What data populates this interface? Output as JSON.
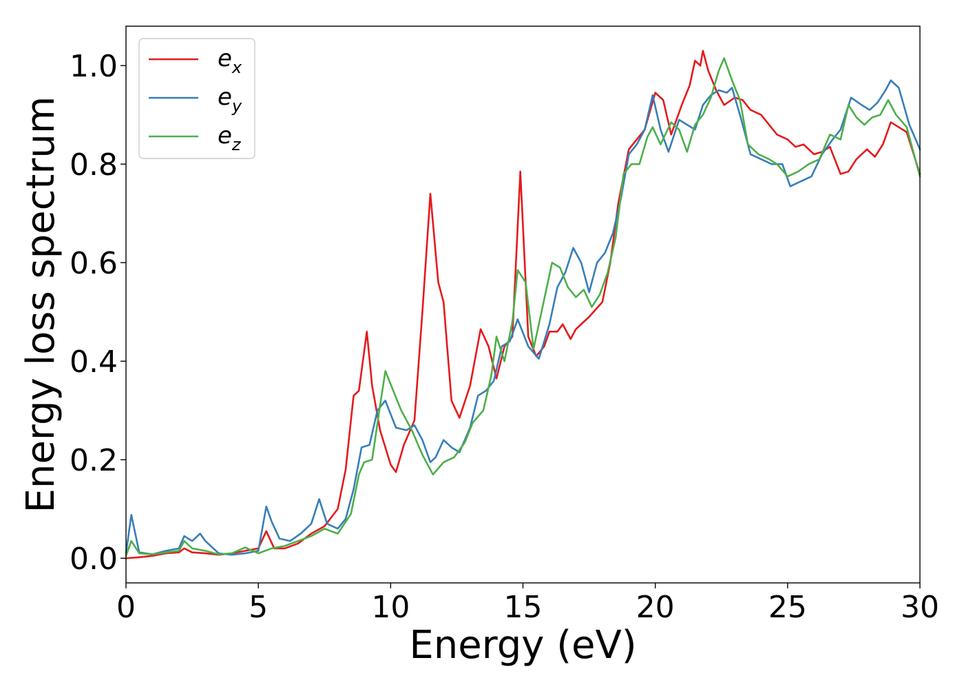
{
  "chart_data": {
    "type": "line",
    "title": "",
    "xlabel": "Energy (eV)",
    "ylabel": "Energy loss spectrum",
    "xlim": [
      0,
      30
    ],
    "ylim": [
      -0.05,
      1.08
    ],
    "x_ticks": [
      0,
      5,
      10,
      15,
      20,
      25,
      30
    ],
    "y_ticks": [
      0.0,
      0.2,
      0.4,
      0.6,
      0.8,
      1.0
    ],
    "x_tick_labels": [
      "0",
      "5",
      "10",
      "15",
      "20",
      "25",
      "30"
    ],
    "y_tick_labels": [
      "0.0",
      "0.2",
      "0.4",
      "0.6",
      "0.8",
      "1.0"
    ],
    "grid": false,
    "legend_position": "upper-left",
    "series": [
      {
        "name": "e_x",
        "legend_base": "e",
        "legend_sub": "x",
        "color": "#e41a1c",
        "points": [
          [
            0,
            0
          ],
          [
            0.5,
            0.002
          ],
          [
            1,
            0.005
          ],
          [
            1.5,
            0.01
          ],
          [
            2,
            0.012
          ],
          [
            2.2,
            0.02
          ],
          [
            2.5,
            0.012
          ],
          [
            3,
            0.01
          ],
          [
            3.5,
            0.007
          ],
          [
            4,
            0.01
          ],
          [
            4.5,
            0.015
          ],
          [
            5,
            0.02
          ],
          [
            5.3,
            0.055
          ],
          [
            5.6,
            0.02
          ],
          [
            6,
            0.02
          ],
          [
            6.5,
            0.03
          ],
          [
            7,
            0.05
          ],
          [
            7.5,
            0.065
          ],
          [
            8,
            0.1
          ],
          [
            8.3,
            0.18
          ],
          [
            8.6,
            0.33
          ],
          [
            8.8,
            0.34
          ],
          [
            9,
            0.42
          ],
          [
            9.1,
            0.46
          ],
          [
            9.3,
            0.35
          ],
          [
            9.6,
            0.26
          ],
          [
            10,
            0.19
          ],
          [
            10.2,
            0.175
          ],
          [
            10.5,
            0.23
          ],
          [
            10.9,
            0.28
          ],
          [
            11.2,
            0.5
          ],
          [
            11.5,
            0.74
          ],
          [
            11.8,
            0.56
          ],
          [
            12,
            0.52
          ],
          [
            12.3,
            0.32
          ],
          [
            12.6,
            0.285
          ],
          [
            13,
            0.35
          ],
          [
            13.4,
            0.465
          ],
          [
            13.7,
            0.43
          ],
          [
            14,
            0.365
          ],
          [
            14.3,
            0.43
          ],
          [
            14.6,
            0.45
          ],
          [
            14.9,
            0.785
          ],
          [
            15.2,
            0.45
          ],
          [
            15.5,
            0.41
          ],
          [
            15.8,
            0.43
          ],
          [
            16,
            0.46
          ],
          [
            16.3,
            0.46
          ],
          [
            16.5,
            0.475
          ],
          [
            16.8,
            0.445
          ],
          [
            17,
            0.465
          ],
          [
            17.5,
            0.49
          ],
          [
            18,
            0.52
          ],
          [
            18.3,
            0.6
          ],
          [
            18.6,
            0.72
          ],
          [
            19,
            0.83
          ],
          [
            19.3,
            0.85
          ],
          [
            19.6,
            0.87
          ],
          [
            20,
            0.945
          ],
          [
            20.3,
            0.93
          ],
          [
            20.6,
            0.86
          ],
          [
            21,
            0.92
          ],
          [
            21.3,
            0.96
          ],
          [
            21.5,
            1.01
          ],
          [
            21.7,
            1.0
          ],
          [
            21.8,
            1.03
          ],
          [
            22,
            0.99
          ],
          [
            22.3,
            0.95
          ],
          [
            22.6,
            0.92
          ],
          [
            23,
            0.935
          ],
          [
            23.3,
            0.93
          ],
          [
            23.6,
            0.91
          ],
          [
            24,
            0.9
          ],
          [
            24.3,
            0.88
          ],
          [
            24.6,
            0.86
          ],
          [
            25,
            0.85
          ],
          [
            25.3,
            0.835
          ],
          [
            25.6,
            0.84
          ],
          [
            26,
            0.82
          ],
          [
            26.3,
            0.825
          ],
          [
            26.6,
            0.835
          ],
          [
            27,
            0.78
          ],
          [
            27.3,
            0.785
          ],
          [
            27.6,
            0.81
          ],
          [
            28,
            0.83
          ],
          [
            28.3,
            0.815
          ],
          [
            28.6,
            0.84
          ],
          [
            28.9,
            0.885
          ],
          [
            29.2,
            0.875
          ],
          [
            29.5,
            0.865
          ],
          [
            30,
            0.78
          ]
        ]
      },
      {
        "name": "e_y",
        "legend_base": "e",
        "legend_sub": "y",
        "color": "#377eb8",
        "points": [
          [
            0,
            0.01
          ],
          [
            0.2,
            0.088
          ],
          [
            0.5,
            0.012
          ],
          [
            1,
            0.008
          ],
          [
            1.5,
            0.015
          ],
          [
            2,
            0.02
          ],
          [
            2.2,
            0.045
          ],
          [
            2.5,
            0.035
          ],
          [
            2.8,
            0.05
          ],
          [
            3,
            0.035
          ],
          [
            3.5,
            0.01
          ],
          [
            4,
            0.007
          ],
          [
            4.5,
            0.01
          ],
          [
            5,
            0.015
          ],
          [
            5.3,
            0.105
          ],
          [
            5.5,
            0.075
          ],
          [
            5.8,
            0.04
          ],
          [
            6.2,
            0.035
          ],
          [
            6.6,
            0.05
          ],
          [
            7,
            0.07
          ],
          [
            7.3,
            0.12
          ],
          [
            7.6,
            0.07
          ],
          [
            8,
            0.06
          ],
          [
            8.3,
            0.08
          ],
          [
            8.6,
            0.14
          ],
          [
            8.9,
            0.225
          ],
          [
            9.2,
            0.23
          ],
          [
            9.5,
            0.3
          ],
          [
            9.8,
            0.32
          ],
          [
            10.2,
            0.265
          ],
          [
            10.6,
            0.26
          ],
          [
            10.9,
            0.27
          ],
          [
            11.2,
            0.24
          ],
          [
            11.5,
            0.195
          ],
          [
            11.7,
            0.205
          ],
          [
            12,
            0.24
          ],
          [
            12.3,
            0.225
          ],
          [
            12.6,
            0.215
          ],
          [
            13,
            0.265
          ],
          [
            13.3,
            0.33
          ],
          [
            13.6,
            0.34
          ],
          [
            13.9,
            0.36
          ],
          [
            14.2,
            0.43
          ],
          [
            14.5,
            0.44
          ],
          [
            14.8,
            0.485
          ],
          [
            15.2,
            0.43
          ],
          [
            15.6,
            0.405
          ],
          [
            16,
            0.475
          ],
          [
            16.3,
            0.55
          ],
          [
            16.6,
            0.58
          ],
          [
            16.9,
            0.63
          ],
          [
            17.2,
            0.6
          ],
          [
            17.5,
            0.54
          ],
          [
            17.8,
            0.6
          ],
          [
            18.1,
            0.62
          ],
          [
            18.4,
            0.66
          ],
          [
            18.7,
            0.73
          ],
          [
            19,
            0.82
          ],
          [
            19.3,
            0.84
          ],
          [
            19.6,
            0.87
          ],
          [
            19.9,
            0.94
          ],
          [
            20.2,
            0.87
          ],
          [
            20.5,
            0.825
          ],
          [
            20.9,
            0.89
          ],
          [
            21.2,
            0.88
          ],
          [
            21.5,
            0.87
          ],
          [
            21.8,
            0.92
          ],
          [
            22.1,
            0.94
          ],
          [
            22.4,
            0.95
          ],
          [
            22.7,
            0.945
          ],
          [
            22.9,
            0.955
          ],
          [
            23.2,
            0.9
          ],
          [
            23.6,
            0.82
          ],
          [
            24,
            0.81
          ],
          [
            24.4,
            0.8
          ],
          [
            24.8,
            0.8
          ],
          [
            25.1,
            0.755
          ],
          [
            25.5,
            0.765
          ],
          [
            25.9,
            0.775
          ],
          [
            26.3,
            0.82
          ],
          [
            26.7,
            0.85
          ],
          [
            27,
            0.87
          ],
          [
            27.4,
            0.935
          ],
          [
            27.8,
            0.92
          ],
          [
            28.1,
            0.91
          ],
          [
            28.4,
            0.925
          ],
          [
            28.7,
            0.95
          ],
          [
            28.9,
            0.97
          ],
          [
            29.2,
            0.955
          ],
          [
            29.6,
            0.88
          ],
          [
            30,
            0.83
          ]
        ]
      },
      {
        "name": "e_z",
        "legend_base": "e",
        "legend_sub": "z",
        "color": "#4daf4a",
        "points": [
          [
            0,
            0.005
          ],
          [
            0.2,
            0.035
          ],
          [
            0.5,
            0.01
          ],
          [
            1,
            0.008
          ],
          [
            1.5,
            0.012
          ],
          [
            2,
            0.015
          ],
          [
            2.2,
            0.035
          ],
          [
            2.5,
            0.02
          ],
          [
            3,
            0.015
          ],
          [
            3.5,
            0.008
          ],
          [
            4,
            0.01
          ],
          [
            4.5,
            0.022
          ],
          [
            5,
            0.01
          ],
          [
            5.5,
            0.02
          ],
          [
            6,
            0.025
          ],
          [
            6.5,
            0.035
          ],
          [
            7,
            0.045
          ],
          [
            7.5,
            0.06
          ],
          [
            8,
            0.05
          ],
          [
            8.5,
            0.09
          ],
          [
            8.8,
            0.17
          ],
          [
            9,
            0.195
          ],
          [
            9.3,
            0.2
          ],
          [
            9.6,
            0.31
          ],
          [
            9.8,
            0.38
          ],
          [
            10.1,
            0.34
          ],
          [
            10.4,
            0.3
          ],
          [
            10.8,
            0.26
          ],
          [
            11.2,
            0.21
          ],
          [
            11.6,
            0.17
          ],
          [
            12,
            0.195
          ],
          [
            12.4,
            0.205
          ],
          [
            12.8,
            0.235
          ],
          [
            13.1,
            0.275
          ],
          [
            13.5,
            0.3
          ],
          [
            13.8,
            0.37
          ],
          [
            14,
            0.45
          ],
          [
            14.3,
            0.4
          ],
          [
            14.6,
            0.48
          ],
          [
            14.8,
            0.585
          ],
          [
            15.1,
            0.56
          ],
          [
            15.4,
            0.425
          ],
          [
            15.7,
            0.5
          ],
          [
            16.1,
            0.6
          ],
          [
            16.4,
            0.59
          ],
          [
            16.7,
            0.55
          ],
          [
            17,
            0.53
          ],
          [
            17.3,
            0.545
          ],
          [
            17.6,
            0.51
          ],
          [
            17.9,
            0.535
          ],
          [
            18.2,
            0.58
          ],
          [
            18.5,
            0.65
          ],
          [
            18.8,
            0.78
          ],
          [
            19.1,
            0.8
          ],
          [
            19.4,
            0.8
          ],
          [
            19.7,
            0.855
          ],
          [
            19.9,
            0.875
          ],
          [
            20.2,
            0.84
          ],
          [
            20.6,
            0.885
          ],
          [
            20.9,
            0.87
          ],
          [
            21.2,
            0.825
          ],
          [
            21.5,
            0.88
          ],
          [
            21.8,
            0.9
          ],
          [
            22.1,
            0.935
          ],
          [
            22.4,
            0.99
          ],
          [
            22.6,
            1.015
          ],
          [
            22.9,
            0.97
          ],
          [
            23.2,
            0.93
          ],
          [
            23.5,
            0.84
          ],
          [
            23.9,
            0.82
          ],
          [
            24.3,
            0.81
          ],
          [
            24.6,
            0.8
          ],
          [
            25,
            0.775
          ],
          [
            25.4,
            0.785
          ],
          [
            25.8,
            0.8
          ],
          [
            26.2,
            0.81
          ],
          [
            26.6,
            0.86
          ],
          [
            27,
            0.85
          ],
          [
            27.3,
            0.92
          ],
          [
            27.6,
            0.895
          ],
          [
            27.9,
            0.88
          ],
          [
            28.2,
            0.895
          ],
          [
            28.5,
            0.9
          ],
          [
            28.8,
            0.93
          ],
          [
            29.1,
            0.9
          ],
          [
            29.5,
            0.875
          ],
          [
            30,
            0.775
          ]
        ]
      }
    ]
  }
}
